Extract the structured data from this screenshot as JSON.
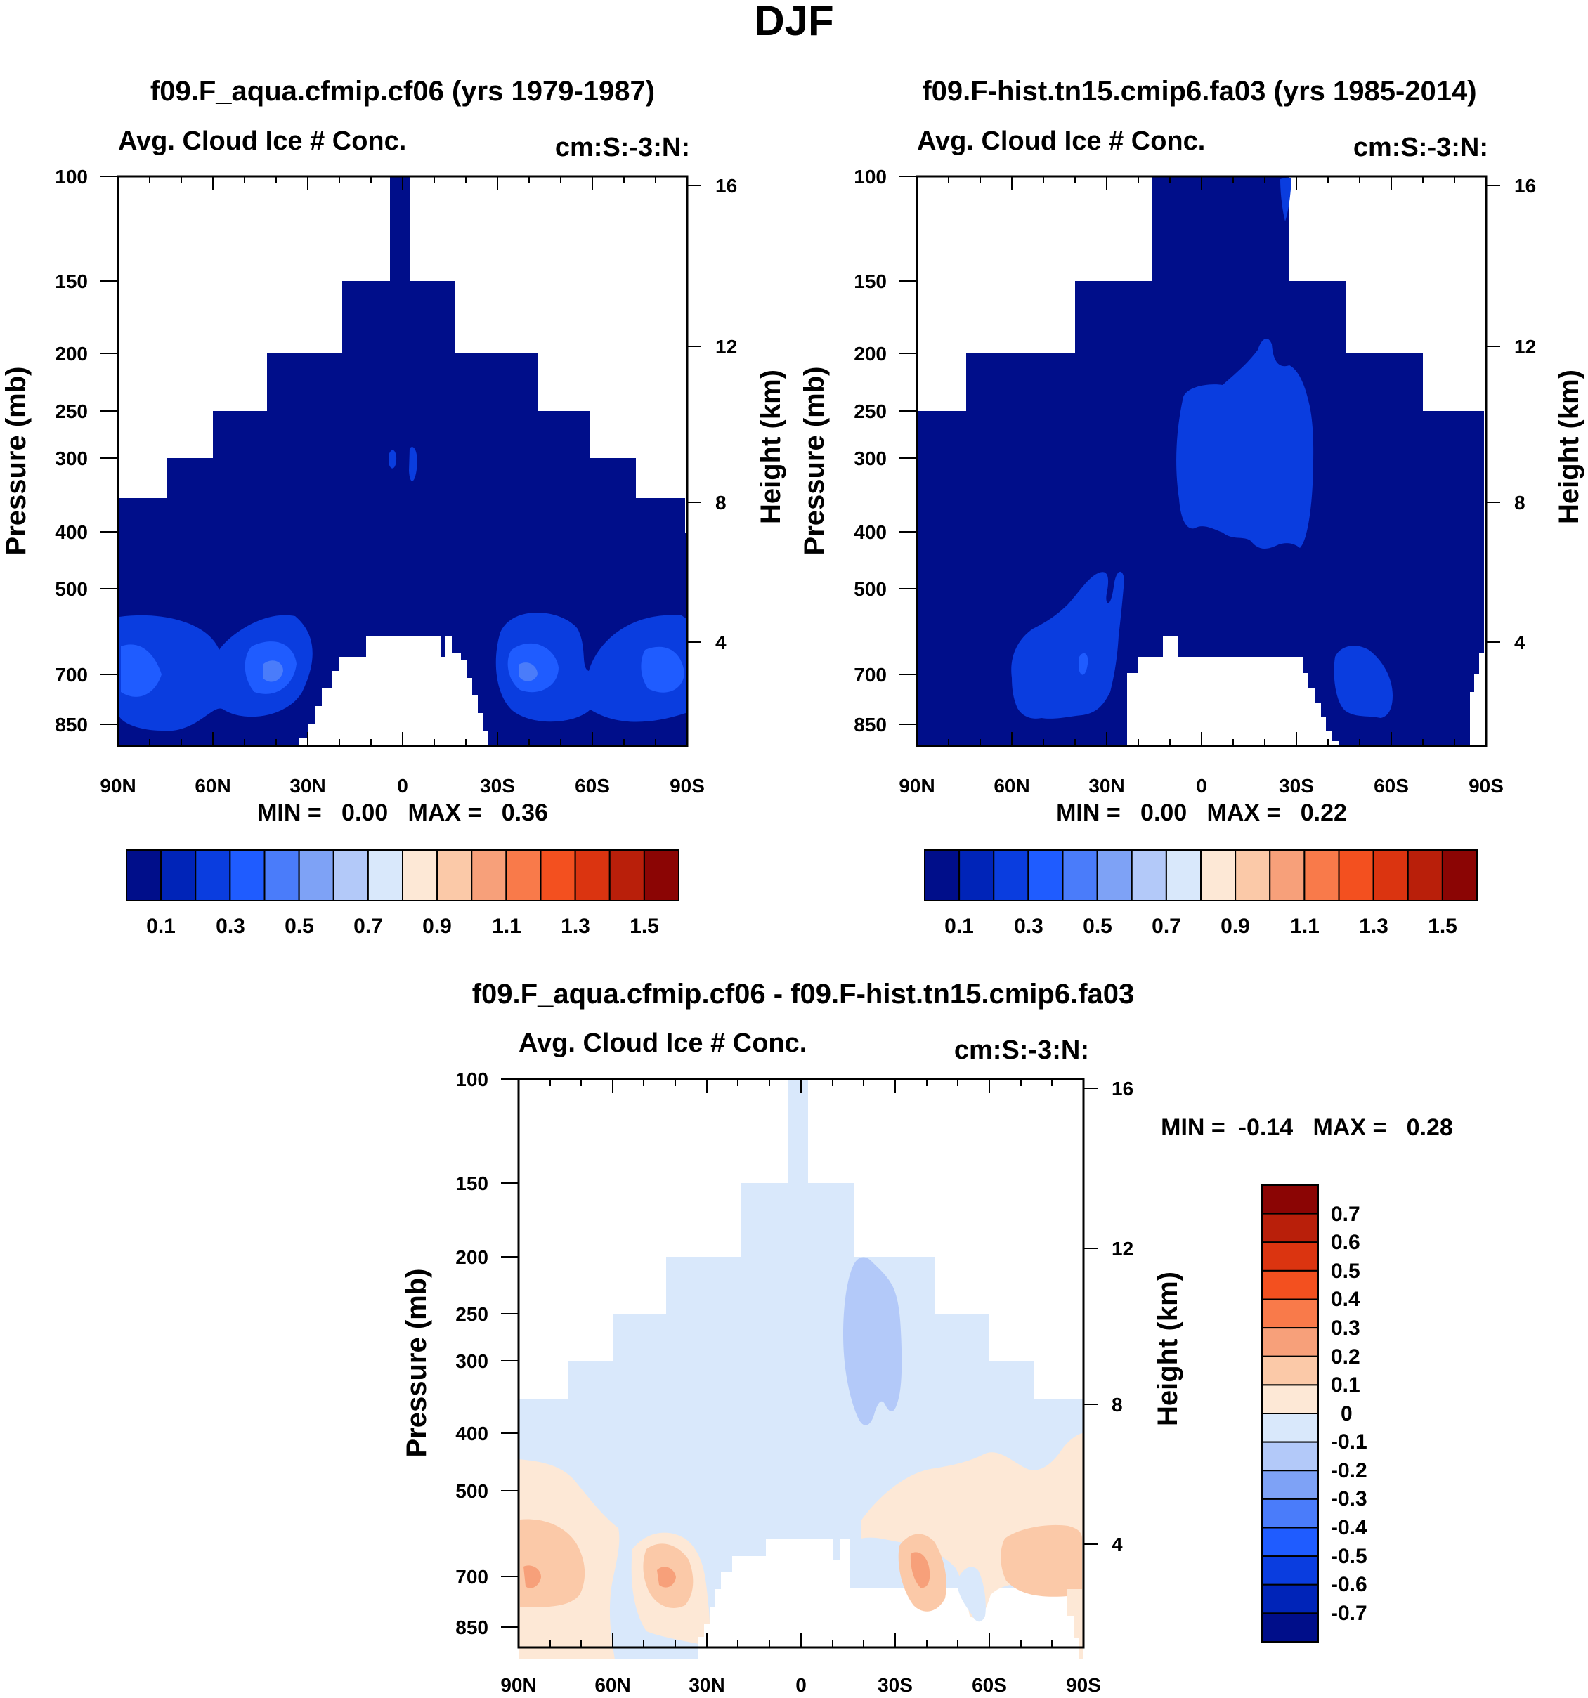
{
  "figure_title": "DJF",
  "colors": {
    "abs_palette": [
      "#000e8a",
      "#0024b8",
      "#0a3ddf",
      "#1f5cff",
      "#4a7cfa",
      "#7ea2f6",
      "#b3c9f9",
      "#d9e8fb",
      "#fde8d6",
      "#fbc9a8",
      "#f7a07a",
      "#f97a4a",
      "#f3501f",
      "#db3410",
      "#b91f0a",
      "#8b0504"
    ],
    "diff_palette": [
      "#000e8a",
      "#0024b8",
      "#0a3ddf",
      "#1f5cff",
      "#4a7cfa",
      "#7ea2f6",
      "#b3c9f9",
      "#d9e8fb",
      "#fde8d6",
      "#fbc9a8",
      "#f7a07a",
      "#f97a4a",
      "#f3501f",
      "#db3410",
      "#b91f0a",
      "#8b0504"
    ]
  },
  "colorbar_abs": {
    "labels": [
      "0.1",
      "0.3",
      "0.5",
      "0.7",
      "0.9",
      "1.1",
      "1.3",
      "1.5"
    ]
  },
  "colorbar_diff": {
    "labels": [
      "0.7",
      "0.6",
      "0.5",
      "0.4",
      "0.3",
      "0.2",
      "0.1",
      "0",
      "-0.1",
      "-0.2",
      "-0.3",
      "-0.4",
      "-0.5",
      "-0.6",
      "-0.7"
    ]
  },
  "chart_data": [
    {
      "type": "heatmap",
      "title": "f09.F_aqua.cfmip.cf06 (yrs 1979-1987)",
      "left_label": "Avg. Cloud Ice # Conc.",
      "right_label": "cm:S:-3:N:",
      "ylabel": "Pressure (mb)",
      "y2label": "Height (km)",
      "x_ticks": [
        "90N",
        "60N",
        "30N",
        "0",
        "30S",
        "60S",
        "90S"
      ],
      "y_ticks": [
        "100",
        "150",
        "200",
        "250",
        "300",
        "400",
        "500",
        "700",
        "850"
      ],
      "y2_ticks": [
        "16",
        "12",
        "8",
        "4"
      ],
      "stats": "MIN =   0.00   MAX =   0.36",
      "min": 0.0,
      "max": 0.36
    },
    {
      "type": "heatmap",
      "title": "f09.F-hist.tn15.cmip6.fa03 (yrs 1985-2014)",
      "left_label": "Avg. Cloud Ice # Conc.",
      "right_label": "cm:S:-3:N:",
      "ylabel": "Pressure (mb)",
      "y2label": "Height (km)",
      "x_ticks": [
        "90N",
        "60N",
        "30N",
        "0",
        "30S",
        "60S",
        "90S"
      ],
      "y_ticks": [
        "100",
        "150",
        "200",
        "250",
        "300",
        "400",
        "500",
        "700",
        "850"
      ],
      "y2_ticks": [
        "16",
        "12",
        "8",
        "4"
      ],
      "stats": "MIN =   0.00   MAX =   0.22",
      "min": 0.0,
      "max": 0.22
    },
    {
      "type": "heatmap",
      "title": "f09.F_aqua.cfmip.cf06 - f09.F-hist.tn15.cmip6.fa03",
      "left_label": "Avg. Cloud Ice # Conc.",
      "right_label": "cm:S:-3:N:",
      "ylabel": "Pressure (mb)",
      "y2label": "Height (km)",
      "x_ticks": [
        "90N",
        "60N",
        "30N",
        "0",
        "30S",
        "60S",
        "90S"
      ],
      "y_ticks": [
        "100",
        "150",
        "200",
        "250",
        "300",
        "400",
        "500",
        "700",
        "850"
      ],
      "y2_ticks": [
        "16",
        "12",
        "8",
        "4"
      ],
      "stats": "MIN =  -0.14   MAX =   0.28",
      "min": -0.14,
      "max": 0.28
    }
  ]
}
